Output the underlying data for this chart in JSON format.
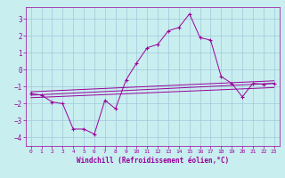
{
  "xlabel": "Windchill (Refroidissement éolien,°C)",
  "background_color": "#c8eef0",
  "grid_color": "#a0c8d8",
  "line_color": "#990099",
  "xlim": [
    -0.5,
    23.5
  ],
  "ylim": [
    -4.5,
    3.7
  ],
  "yticks": [
    -4,
    -3,
    -2,
    -1,
    0,
    1,
    2,
    3
  ],
  "xticks": [
    0,
    1,
    2,
    3,
    4,
    5,
    6,
    7,
    8,
    9,
    10,
    11,
    12,
    13,
    14,
    15,
    16,
    17,
    18,
    19,
    20,
    21,
    22,
    23
  ],
  "series": {
    "main": [
      [
        0,
        -1.4
      ],
      [
        1,
        -1.5
      ],
      [
        2,
        -1.9
      ],
      [
        3,
        -2.0
      ],
      [
        4,
        -3.5
      ],
      [
        5,
        -3.5
      ],
      [
        6,
        -3.8
      ],
      [
        7,
        -1.8
      ],
      [
        8,
        -2.3
      ],
      [
        9,
        -0.6
      ],
      [
        10,
        0.4
      ],
      [
        11,
        1.3
      ],
      [
        12,
        1.5
      ],
      [
        13,
        2.3
      ],
      [
        14,
        2.5
      ],
      [
        15,
        3.3
      ],
      [
        16,
        1.9
      ],
      [
        17,
        1.75
      ],
      [
        18,
        -0.4
      ],
      [
        19,
        -0.8
      ],
      [
        20,
        -1.6
      ],
      [
        21,
        -0.8
      ],
      [
        22,
        -0.85
      ],
      [
        23,
        -0.8
      ]
    ],
    "line1": [
      [
        0,
        -1.3
      ],
      [
        23,
        -0.65
      ]
    ],
    "line2": [
      [
        0,
        -1.5
      ],
      [
        23,
        -0.8
      ]
    ],
    "line3": [
      [
        0,
        -1.65
      ],
      [
        23,
        -1.05
      ]
    ]
  }
}
